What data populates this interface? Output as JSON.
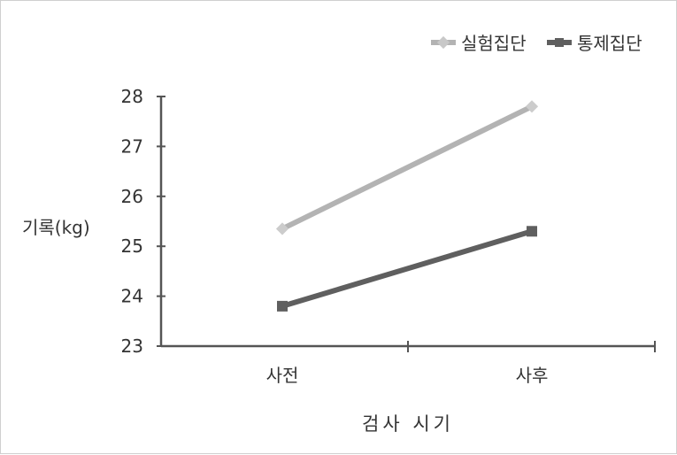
{
  "chart_data": {
    "type": "line",
    "categories": [
      "사전",
      "사후"
    ],
    "series": [
      {
        "name": "실험집단",
        "values": [
          25.35,
          27.8
        ],
        "color": "#b3b3b3",
        "marker": "diamond"
      },
      {
        "name": "통제집단",
        "values": [
          23.8,
          25.3
        ],
        "color": "#5f5f5f",
        "marker": "square"
      }
    ],
    "title": "",
    "xlabel": "검사 시기",
    "ylabel": "기록(kg)",
    "ylim": [
      23,
      28
    ],
    "yticks": [
      "23",
      "24",
      "25",
      "26",
      "27",
      "28"
    ],
    "grid": false,
    "legend_position": "top-right"
  }
}
